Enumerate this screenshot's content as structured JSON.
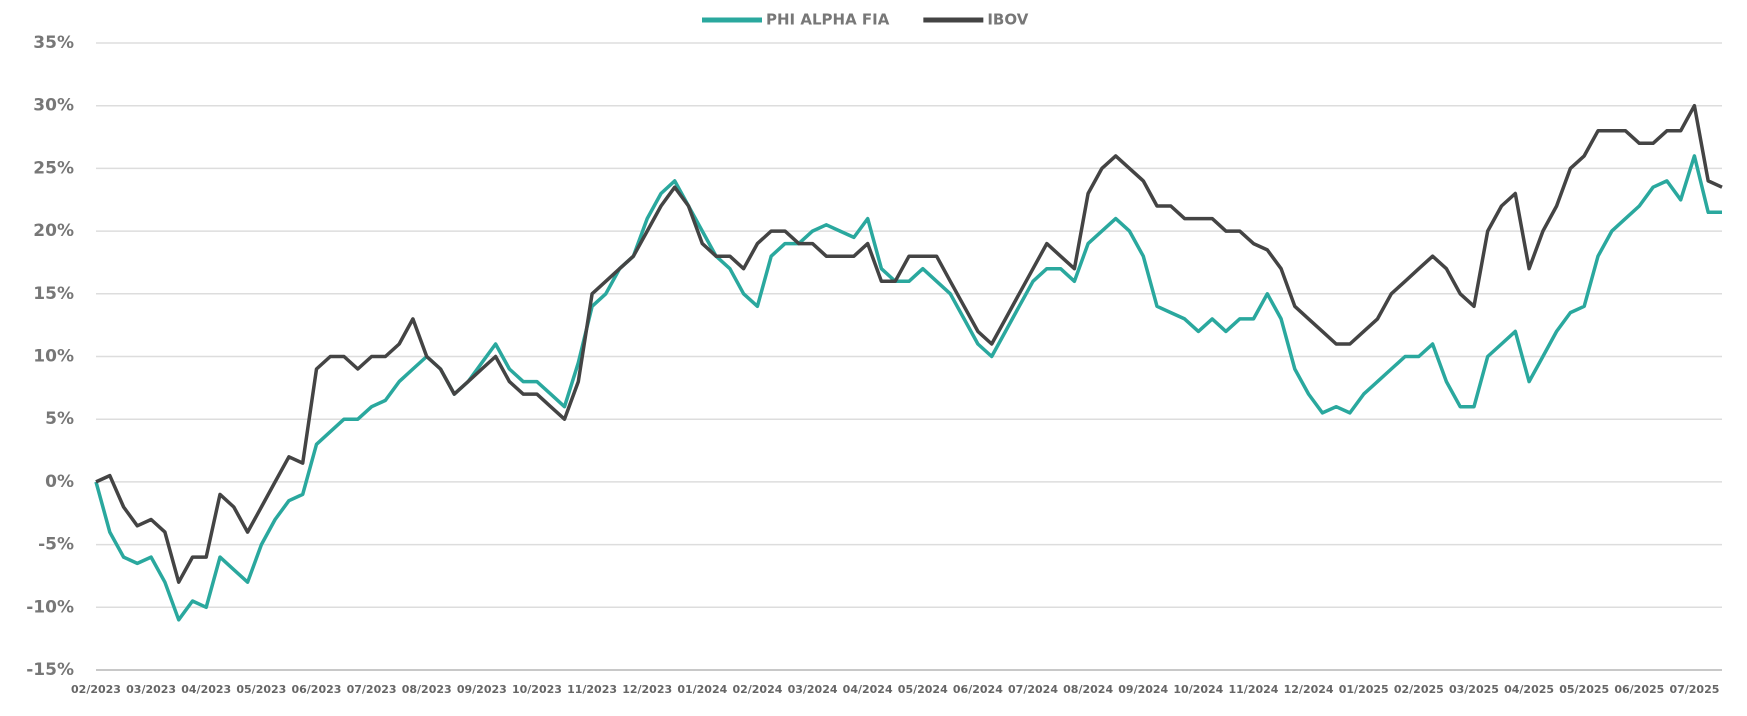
{
  "chart_data": {
    "type": "line",
    "categories": [
      "02/2023",
      null,
      null,
      null,
      "03/2023",
      null,
      null,
      null,
      "04/2023",
      null,
      null,
      null,
      "05/2023",
      null,
      null,
      null,
      "06/2023",
      null,
      null,
      null,
      "07/2023",
      null,
      null,
      null,
      "08/2023",
      null,
      null,
      null,
      "09/2023",
      null,
      null,
      null,
      "10/2023",
      null,
      null,
      null,
      "11/2023",
      null,
      null,
      null,
      "12/2023",
      null,
      null,
      null,
      "01/2024",
      null,
      null,
      null,
      "02/2024",
      null,
      null,
      null,
      "03/2024",
      null,
      null,
      null,
      "04/2024",
      null,
      null,
      null,
      "05/2024",
      null,
      null,
      null,
      "06/2024",
      null,
      null,
      null,
      "07/2024",
      null,
      null,
      null,
      "08/2024",
      null,
      null,
      null,
      "09/2024",
      null,
      null,
      null,
      "10/2024",
      null,
      null,
      null,
      "11/2024",
      null,
      null,
      null,
      "12/2024",
      null,
      null,
      null,
      "01/2025",
      null,
      null,
      null,
      "02/2025",
      null,
      null,
      null,
      "03/2025",
      null,
      null,
      null,
      "04/2025",
      null,
      null,
      null,
      "05/2025",
      null,
      null,
      null,
      "06/2025",
      null,
      null,
      null,
      "07/2025",
      null,
      null
    ],
    "series": [
      {
        "name": "PHI ALPHA FIA",
        "color": "#2aa89e",
        "values": [
          0,
          -4,
          -6,
          -6.5,
          -6,
          -8,
          -11,
          -9.5,
          -10,
          -6,
          -7,
          -8,
          -5,
          -3,
          -1.5,
          -1,
          3,
          4,
          5,
          5,
          6,
          6.5,
          8,
          9,
          10,
          9,
          7,
          8,
          9.5,
          11,
          9,
          8,
          8,
          7,
          6,
          9.5,
          14,
          15,
          17,
          18,
          21,
          23,
          24,
          22,
          20,
          18,
          17,
          15,
          14,
          18,
          19,
          19,
          20,
          20.5,
          20,
          19.5,
          21,
          17,
          16,
          16,
          17,
          16,
          15,
          13,
          11,
          10,
          12,
          14,
          16,
          17,
          17,
          16,
          19,
          20,
          21,
          20,
          18,
          14,
          13.5,
          13,
          12,
          13,
          12,
          13,
          13,
          15,
          13,
          9,
          7,
          5.5,
          6,
          5.5,
          7,
          8,
          9,
          10,
          10,
          11,
          8,
          6,
          6,
          10,
          11,
          12,
          8,
          10,
          12,
          13.5,
          14,
          18,
          20,
          21,
          22,
          23.5,
          24,
          22.5,
          26,
          21.5,
          21.5
        ]
      },
      {
        "name": "IBOV",
        "color": "#444444",
        "values": [
          0,
          0.5,
          -2,
          -3.5,
          -3,
          -4,
          -8,
          -6,
          -6,
          -1,
          -2,
          -4,
          -2,
          0,
          2,
          1.5,
          9,
          10,
          10,
          9,
          10,
          10,
          11,
          13,
          10,
          9,
          7,
          8,
          9,
          10,
          8,
          7,
          7,
          6,
          5,
          8,
          15,
          16,
          17,
          18,
          20,
          22,
          23.5,
          22,
          19,
          18,
          18,
          17,
          19,
          20,
          20,
          19,
          19,
          18,
          18,
          18,
          19,
          16,
          16,
          18,
          18,
          18,
          16,
          14,
          12,
          11,
          13,
          15,
          17,
          19,
          18,
          17,
          23,
          25,
          26,
          25,
          24,
          22,
          22,
          21,
          21,
          21,
          20,
          20,
          19,
          18.5,
          17,
          14,
          13,
          12,
          11,
          11,
          12,
          13,
          15,
          16,
          17,
          18,
          17,
          15,
          14,
          20,
          22,
          23,
          17,
          20,
          22,
          25,
          26,
          28,
          28,
          28,
          27,
          27,
          28,
          28,
          30,
          24,
          23.5
        ]
      }
    ],
    "ylim": [
      -15,
      35
    ],
    "yticks": [
      {
        "value": -15,
        "label": "-15%"
      },
      {
        "value": -10,
        "label": "-10%"
      },
      {
        "value": -5,
        "label": "-5%"
      },
      {
        "value": 0,
        "label": "0%"
      },
      {
        "value": 5,
        "label": "5%"
      },
      {
        "value": 10,
        "label": "10%"
      },
      {
        "value": 15,
        "label": "15%"
      },
      {
        "value": 20,
        "label": "20%"
      },
      {
        "value": 25,
        "label": "25%"
      },
      {
        "value": 30,
        "label": "30%"
      },
      {
        "value": 35,
        "label": "35%"
      }
    ],
    "grid": true,
    "legend": "top"
  }
}
